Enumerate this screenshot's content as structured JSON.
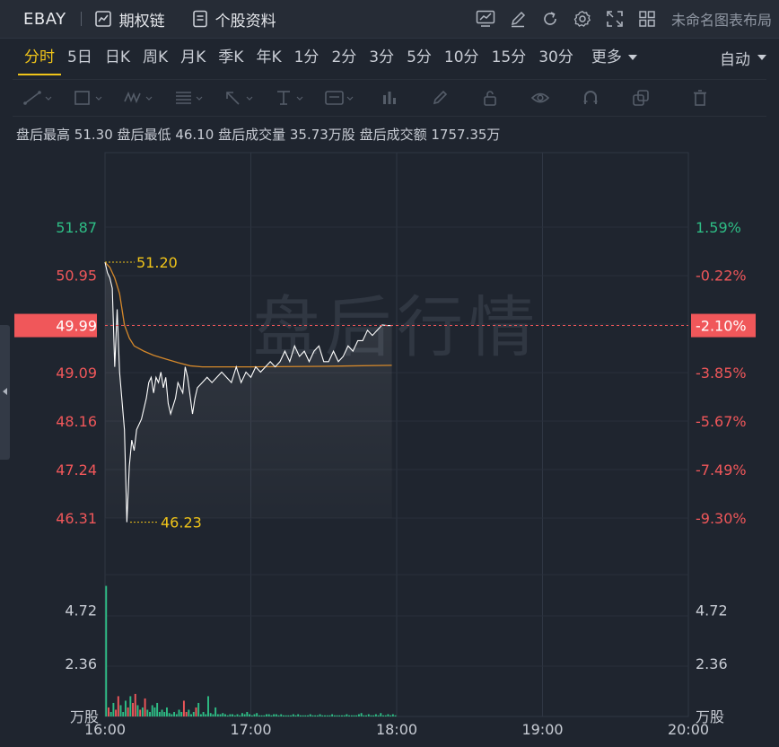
{
  "header": {
    "ticker": "EBAY",
    "options_chain": "期权链",
    "stock_profile": "个股资料",
    "layout_name": "未命名图表布局",
    "icons": [
      "chart-icon",
      "pen-icon",
      "refresh-icon",
      "gear-icon",
      "fullscreen-icon",
      "grid-icon"
    ]
  },
  "tabs": {
    "items": [
      "分时",
      "5日",
      "日K",
      "周K",
      "月K",
      "季K",
      "年K",
      "1分",
      "2分",
      "3分",
      "5分",
      "10分",
      "15分",
      "30分"
    ],
    "active": "分时",
    "more": "更多",
    "mode": "自动"
  },
  "drawing_tools": [
    "line-tool-icon",
    "rect-tool-icon",
    "wave-tool-icon",
    "fib-tool-icon",
    "arrow-tool-icon",
    "text-tool-icon",
    "note-tool-icon",
    "measure-tool-icon",
    "brush-tool-icon",
    "lock-icon",
    "eye-icon",
    "magnet-icon",
    "copy-icon",
    "trash-icon"
  ],
  "info": {
    "high_label": "盘后最高",
    "high": "51.30",
    "low_label": "盘后最低",
    "low": "46.10",
    "vol_label": "盘后成交量",
    "vol": "35.73万股",
    "amt_label": "盘后成交额",
    "amt": "1757.35万"
  },
  "watermark": "盘后行情",
  "colors": {
    "up": "#2ebd85",
    "down": "#f0575a",
    "accent": "#f0c419",
    "line": "#ffffff",
    "avg": "#d4882b",
    "bg": "#1f252f"
  },
  "chart_data": {
    "type": "line",
    "x_ticks": [
      "16:00",
      "17:00",
      "18:00",
      "19:00",
      "20:00"
    ],
    "price_ticks_left": [
      "51.87",
      "50.95",
      "49.99",
      "49.09",
      "48.16",
      "47.24",
      "46.31"
    ],
    "pct_ticks_right": [
      "1.59%",
      "-0.22%",
      "-2.10%",
      "-3.85%",
      "-5.67%",
      "-7.49%",
      "-9.30%"
    ],
    "current_price": "49.99",
    "current_pct": "-2.10%",
    "high_marker": "51.20",
    "low_marker": "46.23",
    "volume_ticks": [
      "4.72",
      "2.36"
    ],
    "volume_unit": "万股",
    "price_series": [
      [
        "16:00",
        51.2
      ],
      [
        "16:01",
        51.0
      ],
      [
        "16:02",
        50.9
      ],
      [
        "16:03",
        50.7
      ],
      [
        "16:04",
        49.2
      ],
      [
        "16:05",
        50.3
      ],
      [
        "16:06",
        49.1
      ],
      [
        "16:08",
        48.0
      ],
      [
        "16:09",
        46.23
      ],
      [
        "16:10",
        47.3
      ],
      [
        "16:11",
        47.8
      ],
      [
        "16:12",
        47.6
      ],
      [
        "16:13",
        48.0
      ],
      [
        "16:15",
        48.2
      ],
      [
        "16:17",
        48.6
      ],
      [
        "16:18",
        48.9
      ],
      [
        "16:19",
        49.0
      ],
      [
        "16:20",
        48.7
      ],
      [
        "16:21",
        49.0
      ],
      [
        "16:22",
        48.9
      ],
      [
        "16:23",
        49.1
      ],
      [
        "16:24",
        48.8
      ],
      [
        "16:25",
        49.0
      ],
      [
        "16:26",
        48.5
      ],
      [
        "16:27",
        48.3
      ],
      [
        "16:29",
        48.6
      ],
      [
        "16:30",
        48.9
      ],
      [
        "16:32",
        48.7
      ],
      [
        "16:33",
        49.2
      ],
      [
        "16:34",
        49.0
      ],
      [
        "16:36",
        48.3
      ],
      [
        "16:37",
        48.6
      ],
      [
        "16:38",
        48.8
      ],
      [
        "16:40",
        48.9
      ],
      [
        "16:42",
        49.0
      ],
      [
        "16:44",
        48.9
      ],
      [
        "16:46",
        49.0
      ],
      [
        "16:48",
        49.1
      ],
      [
        "16:50",
        49.0
      ],
      [
        "16:52",
        48.9
      ],
      [
        "16:54",
        49.2
      ],
      [
        "16:56",
        48.9
      ],
      [
        "16:58",
        49.1
      ],
      [
        "17:00",
        49.0
      ],
      [
        "17:02",
        49.2
      ],
      [
        "17:04",
        49.1
      ],
      [
        "17:06",
        49.2
      ],
      [
        "17:08",
        49.3
      ],
      [
        "17:10",
        49.2
      ],
      [
        "17:12",
        49.3
      ],
      [
        "17:14",
        49.5
      ],
      [
        "17:16",
        49.3
      ],
      [
        "17:18",
        49.6
      ],
      [
        "17:20",
        49.4
      ],
      [
        "17:22",
        49.5
      ],
      [
        "17:24",
        49.3
      ],
      [
        "17:26",
        49.5
      ],
      [
        "17:28",
        49.6
      ],
      [
        "17:30",
        49.3
      ],
      [
        "17:32",
        49.3
      ],
      [
        "17:34",
        49.5
      ],
      [
        "17:36",
        49.3
      ],
      [
        "17:38",
        49.4
      ],
      [
        "17:40",
        49.6
      ],
      [
        "17:42",
        49.5
      ],
      [
        "17:44",
        49.7
      ],
      [
        "17:46",
        49.7
      ],
      [
        "17:48",
        49.9
      ],
      [
        "17:50",
        49.8
      ],
      [
        "17:52",
        49.9
      ],
      [
        "17:54",
        50.0
      ],
      [
        "17:56",
        49.99
      ],
      [
        "17:58",
        49.99
      ]
    ],
    "avg_series": [
      [
        "16:00",
        51.2
      ],
      [
        "16:02",
        51.1
      ],
      [
        "16:04",
        50.9
      ],
      [
        "16:06",
        50.6
      ],
      [
        "16:08",
        50.0
      ],
      [
        "16:10",
        49.75
      ],
      [
        "16:12",
        49.6
      ],
      [
        "16:16",
        49.5
      ],
      [
        "16:20",
        49.42
      ],
      [
        "16:25",
        49.35
      ],
      [
        "16:30",
        49.28
      ],
      [
        "16:35",
        49.22
      ],
      [
        "16:40",
        49.2
      ],
      [
        "16:50",
        49.2
      ],
      [
        "17:00",
        49.2
      ],
      [
        "17:30",
        49.21
      ],
      [
        "17:58",
        49.23
      ]
    ],
    "volume_bars": [
      [
        0,
        5.8,
        "up"
      ],
      [
        1,
        0.4,
        "down"
      ],
      [
        2,
        0.2,
        "up"
      ],
      [
        3,
        0.6,
        "up"
      ],
      [
        4,
        0.3,
        "down"
      ],
      [
        5,
        0.9,
        "down"
      ],
      [
        6,
        0.5,
        "up"
      ],
      [
        7,
        0.2,
        "up"
      ],
      [
        8,
        0.7,
        "up"
      ],
      [
        9,
        0.4,
        "down"
      ],
      [
        10,
        0.9,
        "up"
      ],
      [
        11,
        0.6,
        "down"
      ],
      [
        12,
        1.0,
        "down"
      ],
      [
        13,
        0.5,
        "up"
      ],
      [
        14,
        0.3,
        "down"
      ],
      [
        15,
        0.4,
        "up"
      ],
      [
        16,
        0.8,
        "down"
      ],
      [
        17,
        0.3,
        "up"
      ],
      [
        18,
        0.2,
        "up"
      ],
      [
        19,
        0.5,
        "up"
      ],
      [
        20,
        0.4,
        "up"
      ],
      [
        21,
        0.6,
        "up"
      ],
      [
        22,
        0.2,
        "up"
      ],
      [
        23,
        0.3,
        "up"
      ],
      [
        24,
        0.2,
        "up"
      ],
      [
        25,
        0.4,
        "up"
      ],
      [
        26,
        0.15,
        "up"
      ],
      [
        27,
        0.1,
        "up"
      ],
      [
        28,
        0.2,
        "up"
      ],
      [
        29,
        0.1,
        "up"
      ],
      [
        30,
        0.3,
        "up"
      ],
      [
        31,
        0.2,
        "up"
      ],
      [
        32,
        0.7,
        "down"
      ],
      [
        33,
        0.2,
        "down"
      ],
      [
        34,
        0.3,
        "up"
      ],
      [
        35,
        0.1,
        "up"
      ],
      [
        36,
        0.2,
        "up"
      ],
      [
        37,
        0.4,
        "down"
      ],
      [
        38,
        0.6,
        "up"
      ],
      [
        39,
        0.1,
        "up"
      ],
      [
        40,
        0.2,
        "up"
      ],
      [
        41,
        0.1,
        "up"
      ],
      [
        42,
        0.9,
        "up"
      ],
      [
        43,
        0.15,
        "up"
      ],
      [
        44,
        0.1,
        "up"
      ],
      [
        45,
        0.4,
        "up"
      ],
      [
        46,
        0.1,
        "up"
      ],
      [
        47,
        0.1,
        "up"
      ],
      [
        48,
        0.15,
        "up"
      ],
      [
        49,
        0.1,
        "up"
      ],
      [
        50,
        0.05,
        "up"
      ],
      [
        51,
        0.1,
        "up"
      ],
      [
        52,
        0.1,
        "up"
      ],
      [
        53,
        0.05,
        "up"
      ],
      [
        54,
        0.1,
        "up"
      ],
      [
        55,
        0.05,
        "up"
      ],
      [
        56,
        0.15,
        "up"
      ],
      [
        57,
        0.1,
        "up"
      ],
      [
        58,
        0.2,
        "up"
      ],
      [
        59,
        0.1,
        "up"
      ],
      [
        60,
        0.05,
        "up"
      ],
      [
        61,
        0.1,
        "up"
      ],
      [
        62,
        0.15,
        "up"
      ],
      [
        63,
        0.05,
        "up"
      ],
      [
        64,
        0.05,
        "up"
      ],
      [
        65,
        0.05,
        "up"
      ],
      [
        66,
        0.1,
        "up"
      ],
      [
        67,
        0.1,
        "up"
      ],
      [
        68,
        0.05,
        "up"
      ],
      [
        69,
        0.1,
        "up"
      ],
      [
        70,
        0.1,
        "up"
      ],
      [
        71,
        0.05,
        "up"
      ],
      [
        72,
        0.1,
        "up"
      ],
      [
        73,
        0.05,
        "up"
      ],
      [
        74,
        0.05,
        "up"
      ],
      [
        75,
        0.05,
        "up"
      ],
      [
        76,
        0.05,
        "up"
      ],
      [
        77,
        0.1,
        "up"
      ],
      [
        78,
        0.05,
        "up"
      ],
      [
        79,
        0.1,
        "up"
      ],
      [
        80,
        0.05,
        "up"
      ],
      [
        81,
        0.05,
        "up"
      ],
      [
        82,
        0.05,
        "up"
      ],
      [
        83,
        0.05,
        "up"
      ],
      [
        84,
        0.1,
        "up"
      ],
      [
        85,
        0.05,
        "up"
      ],
      [
        86,
        0.05,
        "up"
      ],
      [
        87,
        0.05,
        "up"
      ],
      [
        88,
        0.1,
        "up"
      ],
      [
        89,
        0.05,
        "up"
      ],
      [
        90,
        0.05,
        "up"
      ],
      [
        91,
        0.05,
        "up"
      ],
      [
        92,
        0.05,
        "up"
      ],
      [
        93,
        0.1,
        "up"
      ],
      [
        94,
        0.05,
        "up"
      ],
      [
        95,
        0.05,
        "up"
      ],
      [
        96,
        0.05,
        "up"
      ],
      [
        97,
        0.05,
        "up"
      ],
      [
        98,
        0.05,
        "up"
      ],
      [
        99,
        0.1,
        "up"
      ],
      [
        100,
        0.05,
        "up"
      ],
      [
        101,
        0.05,
        "up"
      ],
      [
        102,
        0.05,
        "up"
      ],
      [
        103,
        0.05,
        "up"
      ],
      [
        104,
        0.1,
        "up"
      ],
      [
        105,
        0.15,
        "up"
      ],
      [
        106,
        0.05,
        "up"
      ],
      [
        107,
        0.05,
        "up"
      ],
      [
        108,
        0.1,
        "up"
      ],
      [
        109,
        0.05,
        "up"
      ],
      [
        110,
        0.05,
        "up"
      ],
      [
        111,
        0.1,
        "up"
      ],
      [
        112,
        0.05,
        "up"
      ],
      [
        113,
        0.15,
        "up"
      ],
      [
        114,
        0.05,
        "up"
      ],
      [
        115,
        0.05,
        "up"
      ],
      [
        116,
        0.1,
        "up"
      ],
      [
        117,
        0.05,
        "up"
      ],
      [
        118,
        0.1,
        "up"
      ],
      [
        119,
        0.05,
        "up"
      ]
    ]
  }
}
